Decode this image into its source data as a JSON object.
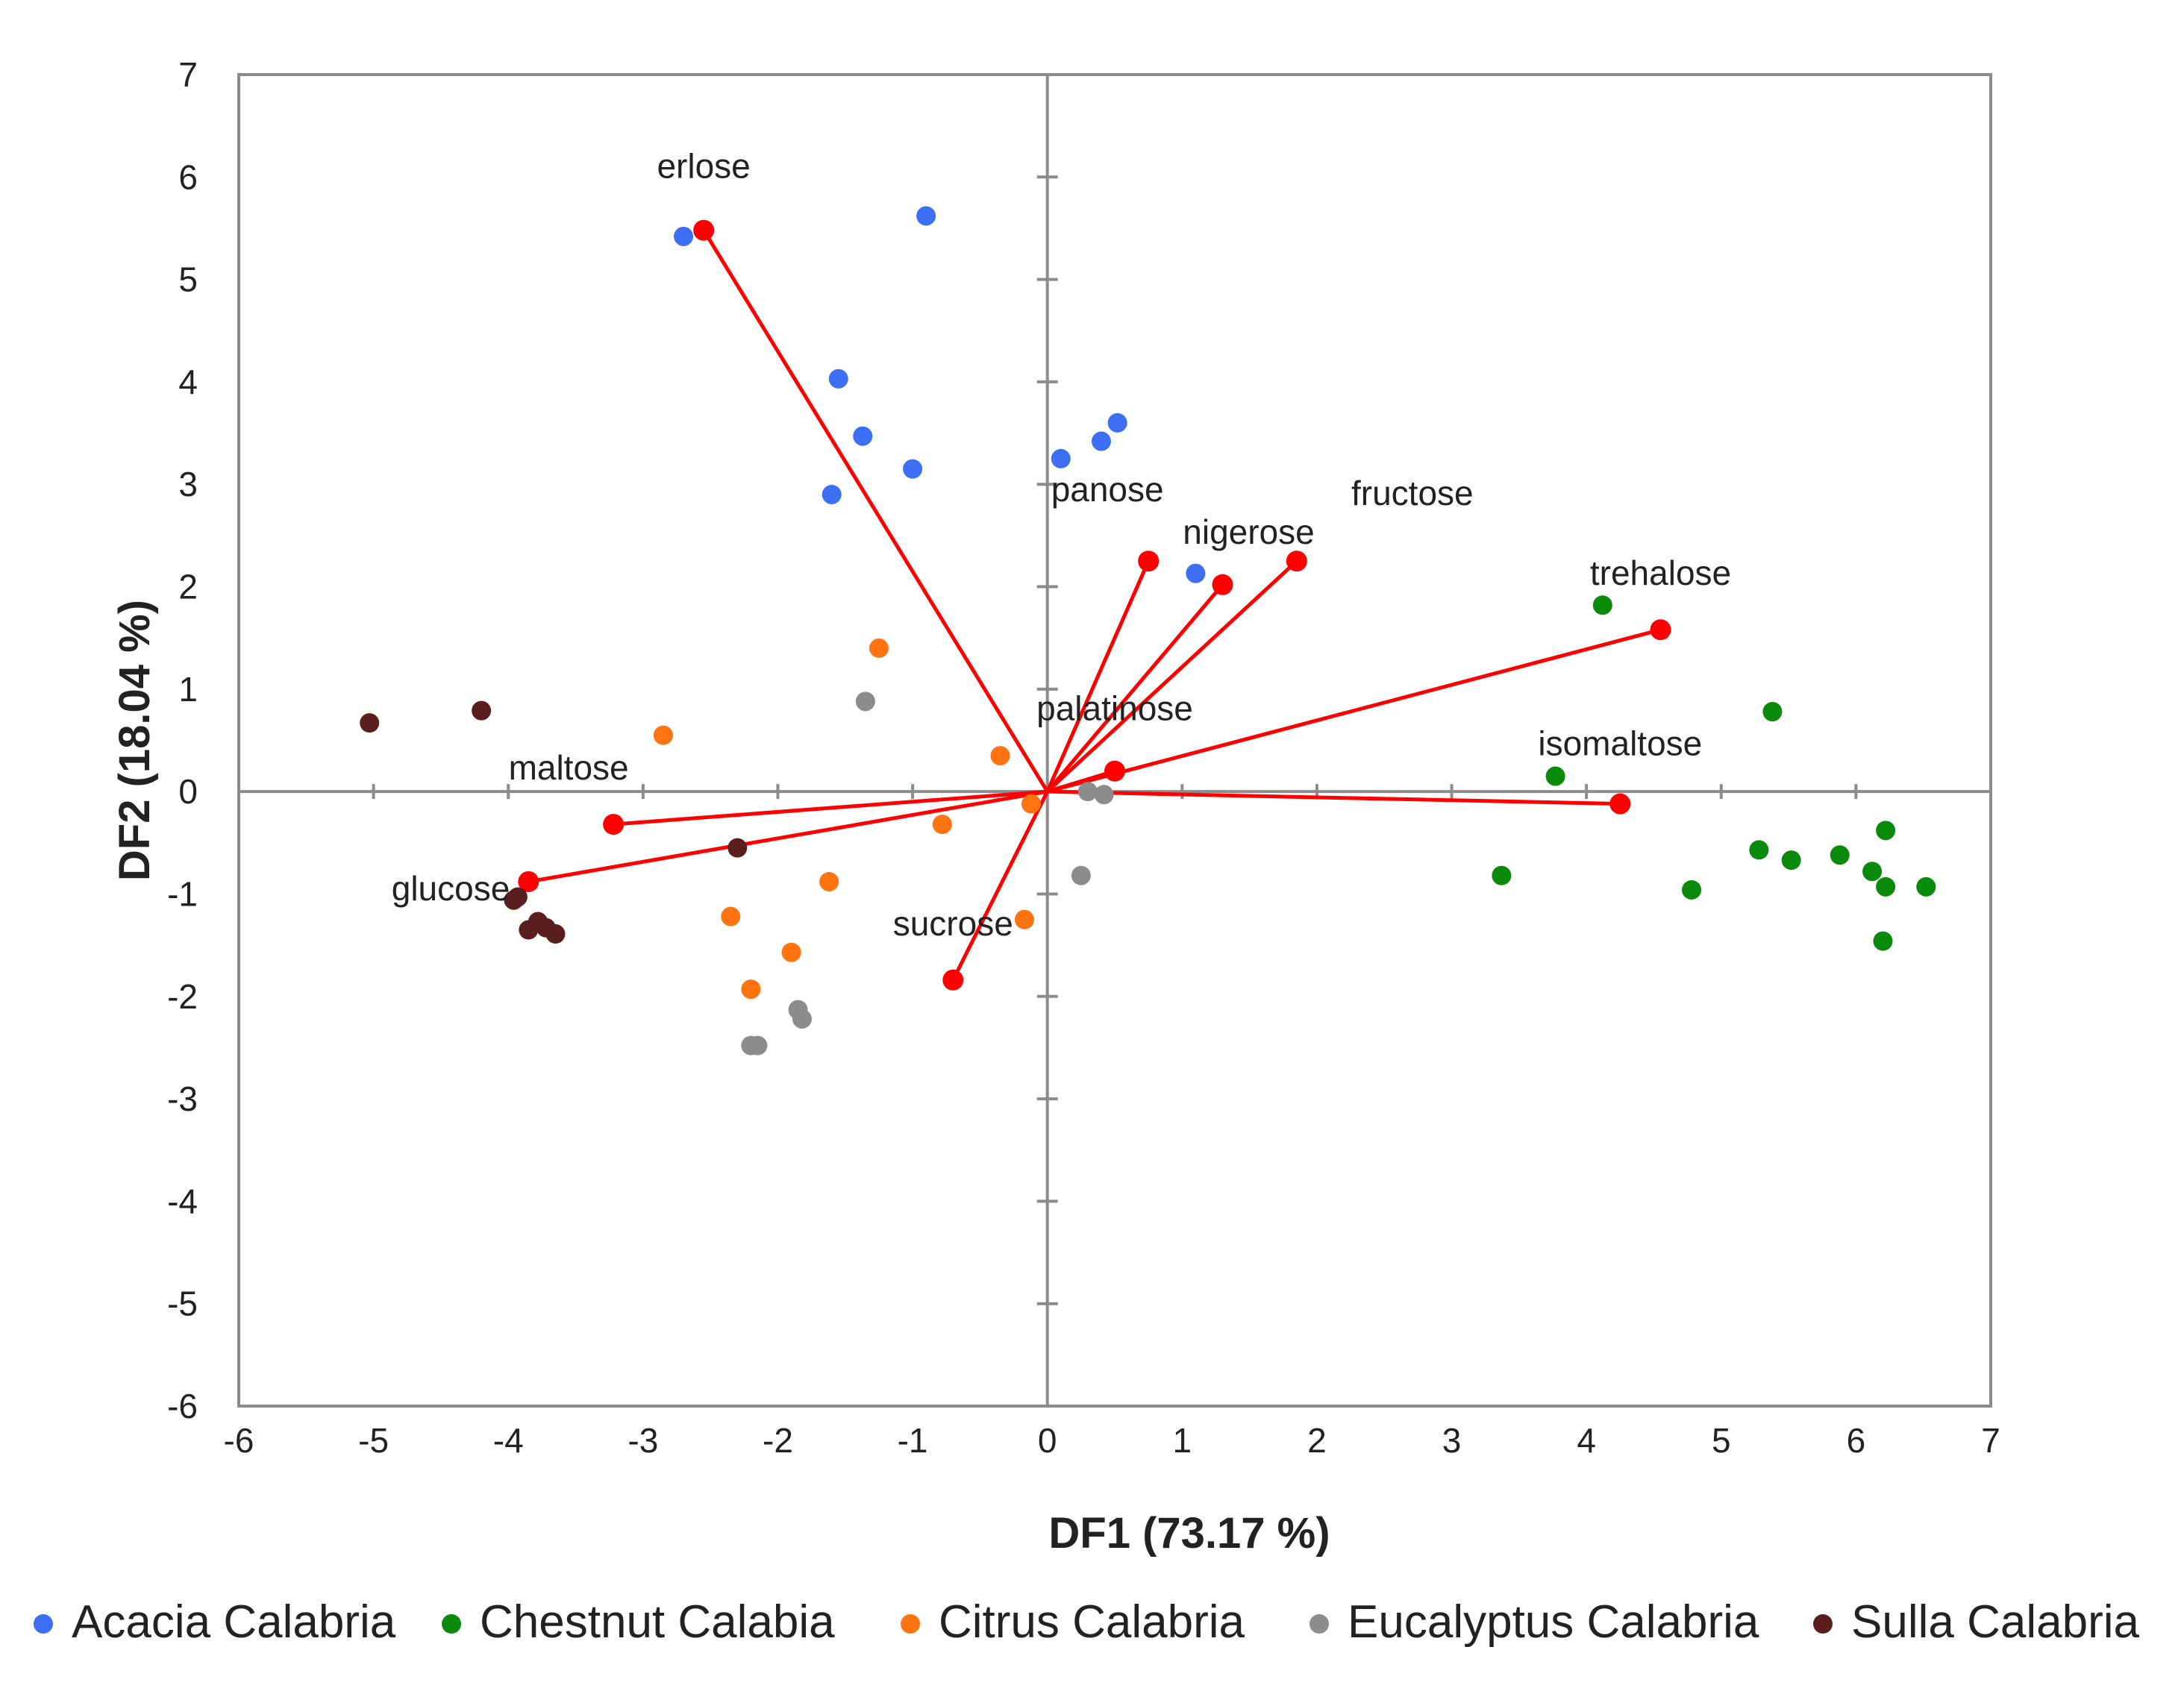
{
  "chart_data": {
    "type": "scatter",
    "title": "",
    "xlabel": "DF1 (73.17 %)",
    "ylabel": "DF2 (18.04 %)",
    "xlim": [
      -6,
      7
    ],
    "ylim": [
      -6,
      7
    ],
    "x_ticks": [
      -6,
      -5,
      -4,
      -3,
      -2,
      -1,
      0,
      1,
      2,
      3,
      4,
      5,
      6,
      7
    ],
    "y_ticks": [
      -6,
      -5,
      -4,
      -3,
      -2,
      -1,
      0,
      1,
      2,
      3,
      4,
      5,
      6,
      7
    ],
    "grid": false,
    "legend_position": "bottom",
    "loading_color": "#ff0000",
    "series": [
      {
        "name": "Acacia Calabria",
        "color": "#3d6ff5",
        "points": [
          {
            "x": -2.7,
            "y": 5.42
          },
          {
            "x": -0.9,
            "y": 5.62
          },
          {
            "x": -1.55,
            "y": 4.03
          },
          {
            "x": -1.37,
            "y": 3.47
          },
          {
            "x": -1.0,
            "y": 3.15
          },
          {
            "x": -1.6,
            "y": 2.9
          },
          {
            "x": 0.1,
            "y": 3.25
          },
          {
            "x": 0.4,
            "y": 3.42
          },
          {
            "x": 0.52,
            "y": 3.6
          },
          {
            "x": 1.1,
            "y": 2.13
          }
        ]
      },
      {
        "name": "Chestnut Calabia",
        "color": "#0a8a0a",
        "points": [
          {
            "x": 4.12,
            "y": 1.82
          },
          {
            "x": 5.38,
            "y": 0.78
          },
          {
            "x": 3.77,
            "y": 0.15
          },
          {
            "x": 3.37,
            "y": -0.82
          },
          {
            "x": 4.78,
            "y": -0.96
          },
          {
            "x": 5.28,
            "y": -0.57
          },
          {
            "x": 5.52,
            "y": -0.67
          },
          {
            "x": 5.88,
            "y": -0.62
          },
          {
            "x": 6.12,
            "y": -0.78
          },
          {
            "x": 6.22,
            "y": -0.93
          },
          {
            "x": 6.52,
            "y": -0.93
          },
          {
            "x": 6.22,
            "y": -0.38
          },
          {
            "x": 6.2,
            "y": -1.46
          }
        ]
      },
      {
        "name": "Citrus  Calabria",
        "color": "#ff7410",
        "points": [
          {
            "x": -1.25,
            "y": 1.4
          },
          {
            "x": -2.85,
            "y": 0.55
          },
          {
            "x": -0.35,
            "y": 0.35
          },
          {
            "x": -0.78,
            "y": -0.32
          },
          {
            "x": -0.12,
            "y": -0.12
          },
          {
            "x": -2.35,
            "y": -1.22
          },
          {
            "x": -1.62,
            "y": -0.88
          },
          {
            "x": -0.17,
            "y": -1.25
          },
          {
            "x": -1.9,
            "y": -1.57
          },
          {
            "x": -2.2,
            "y": -1.93
          }
        ]
      },
      {
        "name": "Eucalyptus Calabria",
        "color": "#8c8c8c",
        "points": [
          {
            "x": -1.35,
            "y": 0.88
          },
          {
            "x": 0.3,
            "y": 0.0
          },
          {
            "x": 0.42,
            "y": -0.03
          },
          {
            "x": 0.25,
            "y": -0.82
          },
          {
            "x": -1.85,
            "y": -2.13
          },
          {
            "x": -1.82,
            "y": -2.22
          },
          {
            "x": -2.2,
            "y": -2.48
          },
          {
            "x": -2.15,
            "y": -2.48
          }
        ]
      },
      {
        "name": "Sulla Calabria",
        "color": "#5b1e1e",
        "points": [
          {
            "x": -5.03,
            "y": 0.67
          },
          {
            "x": -4.2,
            "y": 0.79
          },
          {
            "x": -2.3,
            "y": -0.55
          },
          {
            "x": -3.96,
            "y": -1.06
          },
          {
            "x": -3.93,
            "y": -1.03
          },
          {
            "x": -3.78,
            "y": -1.27
          },
          {
            "x": -3.85,
            "y": -1.35
          },
          {
            "x": -3.72,
            "y": -1.33
          },
          {
            "x": -3.65,
            "y": -1.39
          }
        ]
      }
    ],
    "loadings": [
      {
        "name": "erlose",
        "x": -2.55,
        "y": 5.48
      },
      {
        "name": "panose",
        "x": 0.75,
        "y": 2.25
      },
      {
        "name": "nigerose",
        "x": 1.3,
        "y": 2.02
      },
      {
        "name": "fructose",
        "x": 1.85,
        "y": 2.25
      },
      {
        "name": "trehalose",
        "x": 4.55,
        "y": 1.58
      },
      {
        "name": "palatinose",
        "x": 0.5,
        "y": 0.2
      },
      {
        "name": "isomaltose",
        "x": 4.25,
        "y": -0.12
      },
      {
        "name": "maltose",
        "x": -3.22,
        "y": -0.32
      },
      {
        "name": "glucose",
        "x": -3.85,
        "y": -0.88
      },
      {
        "name": "sucrose",
        "x": -0.7,
        "y": -1.84
      }
    ]
  }
}
